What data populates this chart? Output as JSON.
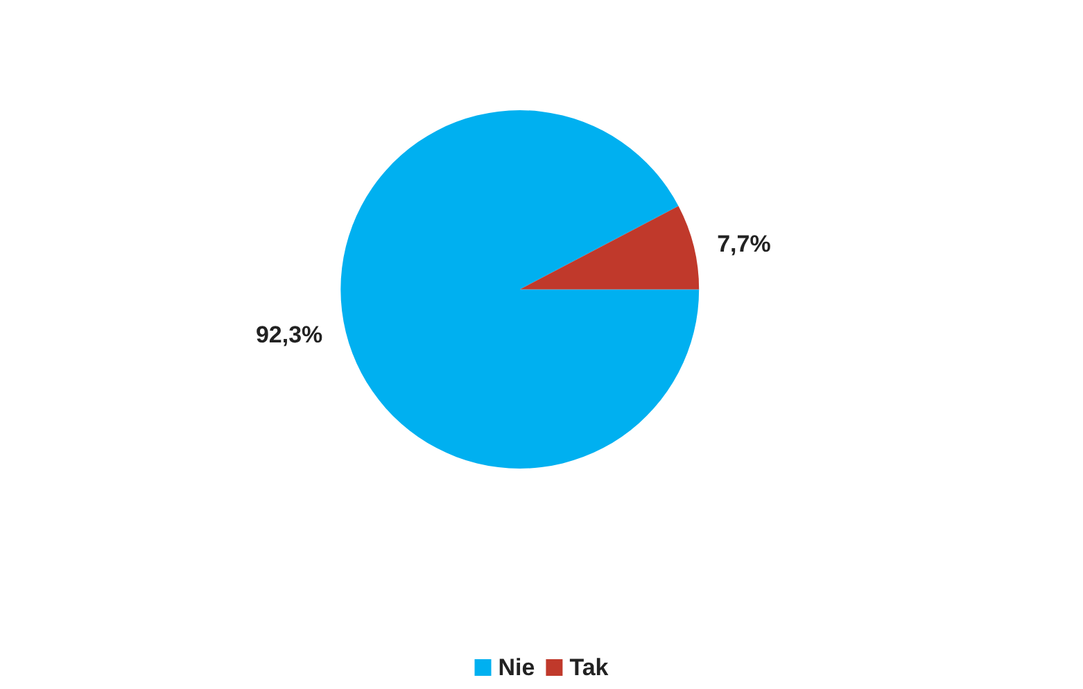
{
  "chart_data": {
    "type": "pie",
    "categories": [
      "Nie",
      "Tak"
    ],
    "values": [
      92.3,
      7.7
    ],
    "value_labels": [
      "92,3%",
      "7,7%"
    ],
    "colors": [
      "#00b0f0",
      "#c0392b"
    ],
    "legend": "bottom"
  }
}
